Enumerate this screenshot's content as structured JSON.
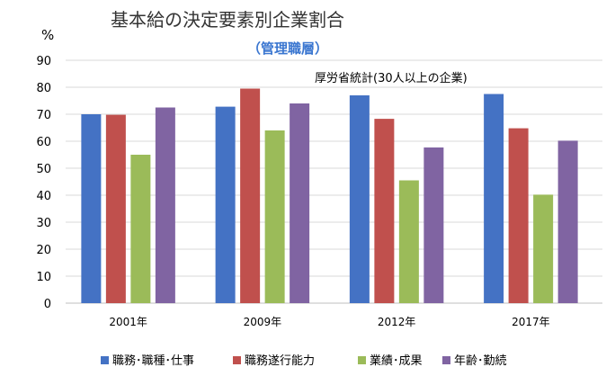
{
  "chart_data": {
    "type": "bar",
    "title": "基本給の決定要素別企業割合",
    "subtitle": "（管理職層）",
    "source_note": "厚労省統計(30人以上の企業)",
    "ylabel": "%",
    "xlabel": "",
    "ylim": [
      0,
      90
    ],
    "yticks": [
      0,
      10,
      20,
      30,
      40,
      50,
      60,
      70,
      80,
      90
    ],
    "categories": [
      "2001年",
      "2009年",
      "2012年",
      "2017年"
    ],
    "series": [
      {
        "name": "職務･職種･仕事",
        "color": "#4472c4",
        "values": [
          70,
          72.8,
          77,
          77.5
        ]
      },
      {
        "name": "職務遂行能力",
        "color": "#c0504d",
        "values": [
          69.8,
          79.5,
          68.3,
          64.8
        ]
      },
      {
        "name": "業績･成果",
        "color": "#9bbb59",
        "values": [
          55,
          64,
          45.5,
          40.2
        ]
      },
      {
        "name": "年齢･勤続",
        "color": "#8064a2",
        "values": [
          72.5,
          74,
          57.7,
          60.2
        ]
      }
    ],
    "grid": true,
    "legend_position": "bottom"
  }
}
